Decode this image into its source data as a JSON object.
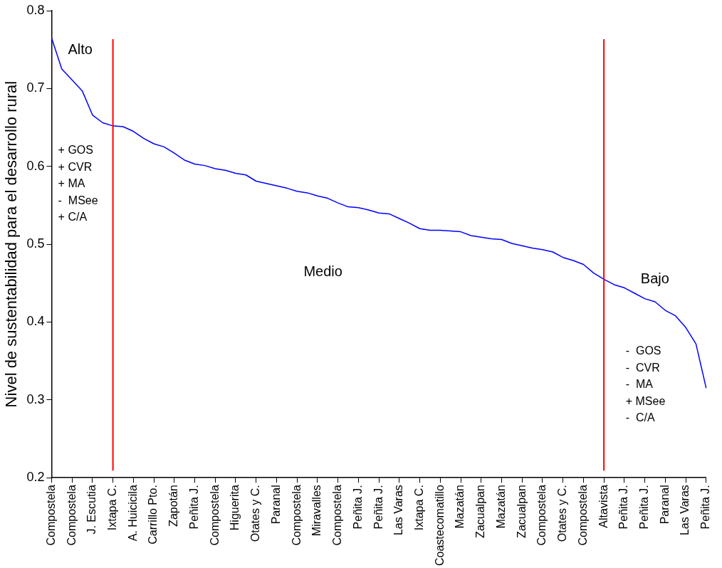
{
  "chart_data": {
    "type": "line",
    "ylabel": "Nivel de sustentabilidad para el desarrollo rural",
    "categories": [
      "Compostela",
      null,
      "Compostela",
      null,
      "J. Escutia",
      null,
      "Ixtapa C.",
      null,
      "A. Huicicila",
      null,
      "Carrillo Pto.",
      null,
      "Zapotán",
      null,
      "Peñita J.",
      null,
      "Compostela",
      null,
      "Higuerita",
      null,
      "Otates y C.",
      null,
      "Paranal",
      null,
      "Compostela",
      null,
      "Miravalles",
      null,
      "Compostela",
      null,
      "Peñita J.",
      null,
      "Peñita J.",
      null,
      "Las Varas",
      null,
      "Ixtapa C.",
      null,
      "Coastecomatillo",
      null,
      "Mazatán",
      null,
      "Zacualpan",
      null,
      "Mazatán",
      null,
      "Zacualpan",
      null,
      "Compostela",
      null,
      "Otates y C.",
      null,
      "Compostela",
      null,
      "Altavista",
      null,
      "Peñita J.",
      null,
      "Peñita J.",
      null,
      "Paranal",
      null,
      "Las Varas",
      null,
      "Peñita J."
    ],
    "series": [
      {
        "color": "#0000ff",
        "values": [
          0.765,
          0.725,
          0.711,
          0.697,
          0.666,
          0.656,
          0.652,
          0.651,
          0.645,
          0.636,
          0.629,
          0.625,
          0.617,
          0.608,
          0.603,
          0.601,
          0.597,
          0.595,
          0.591,
          0.589,
          0.581,
          0.578,
          0.575,
          0.572,
          0.568,
          0.566,
          0.562,
          0.559,
          0.553,
          0.548,
          0.547,
          0.544,
          0.54,
          0.539,
          0.533,
          0.527,
          0.52,
          0.518,
          0.518,
          0.517,
          0.516,
          0.511,
          0.509,
          0.507,
          0.506,
          0.501,
          0.498,
          0.495,
          0.493,
          0.49,
          0.483,
          0.479,
          0.474,
          0.463,
          0.455,
          0.448,
          0.444,
          0.437,
          0.43,
          0.426,
          0.415,
          0.408,
          0.393,
          0.372,
          0.315
        ]
      }
    ],
    "ylim": [
      0.2,
      0.8
    ],
    "yticks": [
      0.2,
      0.3,
      0.4,
      0.5,
      0.6,
      0.7,
      0.8
    ],
    "ref_lines": [
      {
        "axis": "x",
        "value": "Ixtapa C.",
        "color": "#ff0000"
      },
      {
        "axis": "x",
        "value": "Altavista",
        "color": "#ff0000"
      }
    ],
    "annotations": [
      "Alto",
      "Medio",
      "Bajo",
      "+ GOS\n+ CVR\n+ MA\n-  MSee\n+ C/A",
      "-  GOS\n-  CVR\n-  MA\n+ MSee\n-  C/A"
    ],
    "grid": false,
    "legend": false,
    "marker": "none",
    "line_style": "solid"
  }
}
